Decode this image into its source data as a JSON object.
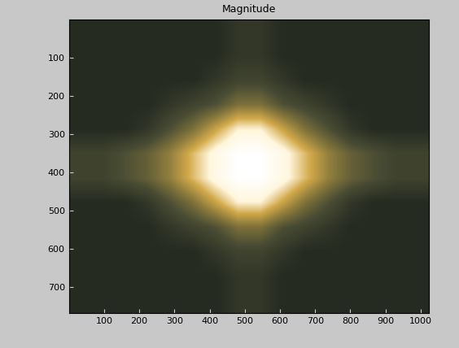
{
  "chart_data": {
    "type": "heatmap",
    "title": "Magnitude",
    "xlim": [
      0,
      1024
    ],
    "ylim": [
      768,
      0
    ],
    "xticks": [
      100,
      200,
      300,
      400,
      500,
      600,
      700,
      800,
      900,
      1000
    ],
    "yticks": [
      100,
      200,
      300,
      400,
      500,
      600,
      700
    ],
    "cells": [
      [
        0.3,
        0.3,
        0.3,
        0.3,
        0.3,
        0.3,
        0.3,
        0.35,
        0.35,
        0.3,
        0.3,
        0.3,
        0.3,
        0.3,
        0.3,
        0.3
      ],
      [
        0.3,
        0.3,
        0.3,
        0.3,
        0.3,
        0.3,
        0.3,
        0.35,
        0.35,
        0.3,
        0.3,
        0.3,
        0.3,
        0.3,
        0.3,
        0.3
      ],
      [
        0.3,
        0.3,
        0.3,
        0.3,
        0.3,
        0.3,
        0.35,
        0.4,
        0.4,
        0.35,
        0.3,
        0.3,
        0.3,
        0.3,
        0.3,
        0.3
      ],
      [
        0.3,
        0.3,
        0.3,
        0.3,
        0.35,
        0.4,
        0.45,
        0.55,
        0.55,
        0.45,
        0.4,
        0.35,
        0.3,
        0.3,
        0.3,
        0.3
      ],
      [
        0.3,
        0.3,
        0.3,
        0.35,
        0.45,
        0.55,
        0.7,
        0.85,
        0.85,
        0.7,
        0.55,
        0.45,
        0.35,
        0.3,
        0.3,
        0.3
      ],
      [
        0.4,
        0.4,
        0.45,
        0.5,
        0.6,
        0.75,
        0.9,
        1.0,
        1.0,
        0.9,
        0.75,
        0.6,
        0.5,
        0.45,
        0.4,
        0.4
      ],
      [
        0.4,
        0.4,
        0.45,
        0.5,
        0.6,
        0.75,
        0.9,
        1.0,
        1.0,
        0.9,
        0.75,
        0.6,
        0.5,
        0.45,
        0.4,
        0.4
      ],
      [
        0.3,
        0.3,
        0.3,
        0.35,
        0.45,
        0.55,
        0.7,
        0.85,
        0.85,
        0.7,
        0.55,
        0.45,
        0.35,
        0.3,
        0.3,
        0.3
      ],
      [
        0.3,
        0.3,
        0.3,
        0.3,
        0.35,
        0.4,
        0.45,
        0.55,
        0.55,
        0.45,
        0.4,
        0.35,
        0.3,
        0.3,
        0.3,
        0.3
      ],
      [
        0.3,
        0.3,
        0.3,
        0.3,
        0.3,
        0.3,
        0.35,
        0.4,
        0.4,
        0.35,
        0.3,
        0.3,
        0.3,
        0.3,
        0.3,
        0.3
      ],
      [
        0.3,
        0.3,
        0.3,
        0.3,
        0.3,
        0.3,
        0.3,
        0.35,
        0.35,
        0.3,
        0.3,
        0.3,
        0.3,
        0.3,
        0.3,
        0.3
      ],
      [
        0.3,
        0.3,
        0.3,
        0.3,
        0.3,
        0.3,
        0.3,
        0.35,
        0.35,
        0.3,
        0.3,
        0.3,
        0.3,
        0.3,
        0.3,
        0.3
      ]
    ]
  }
}
